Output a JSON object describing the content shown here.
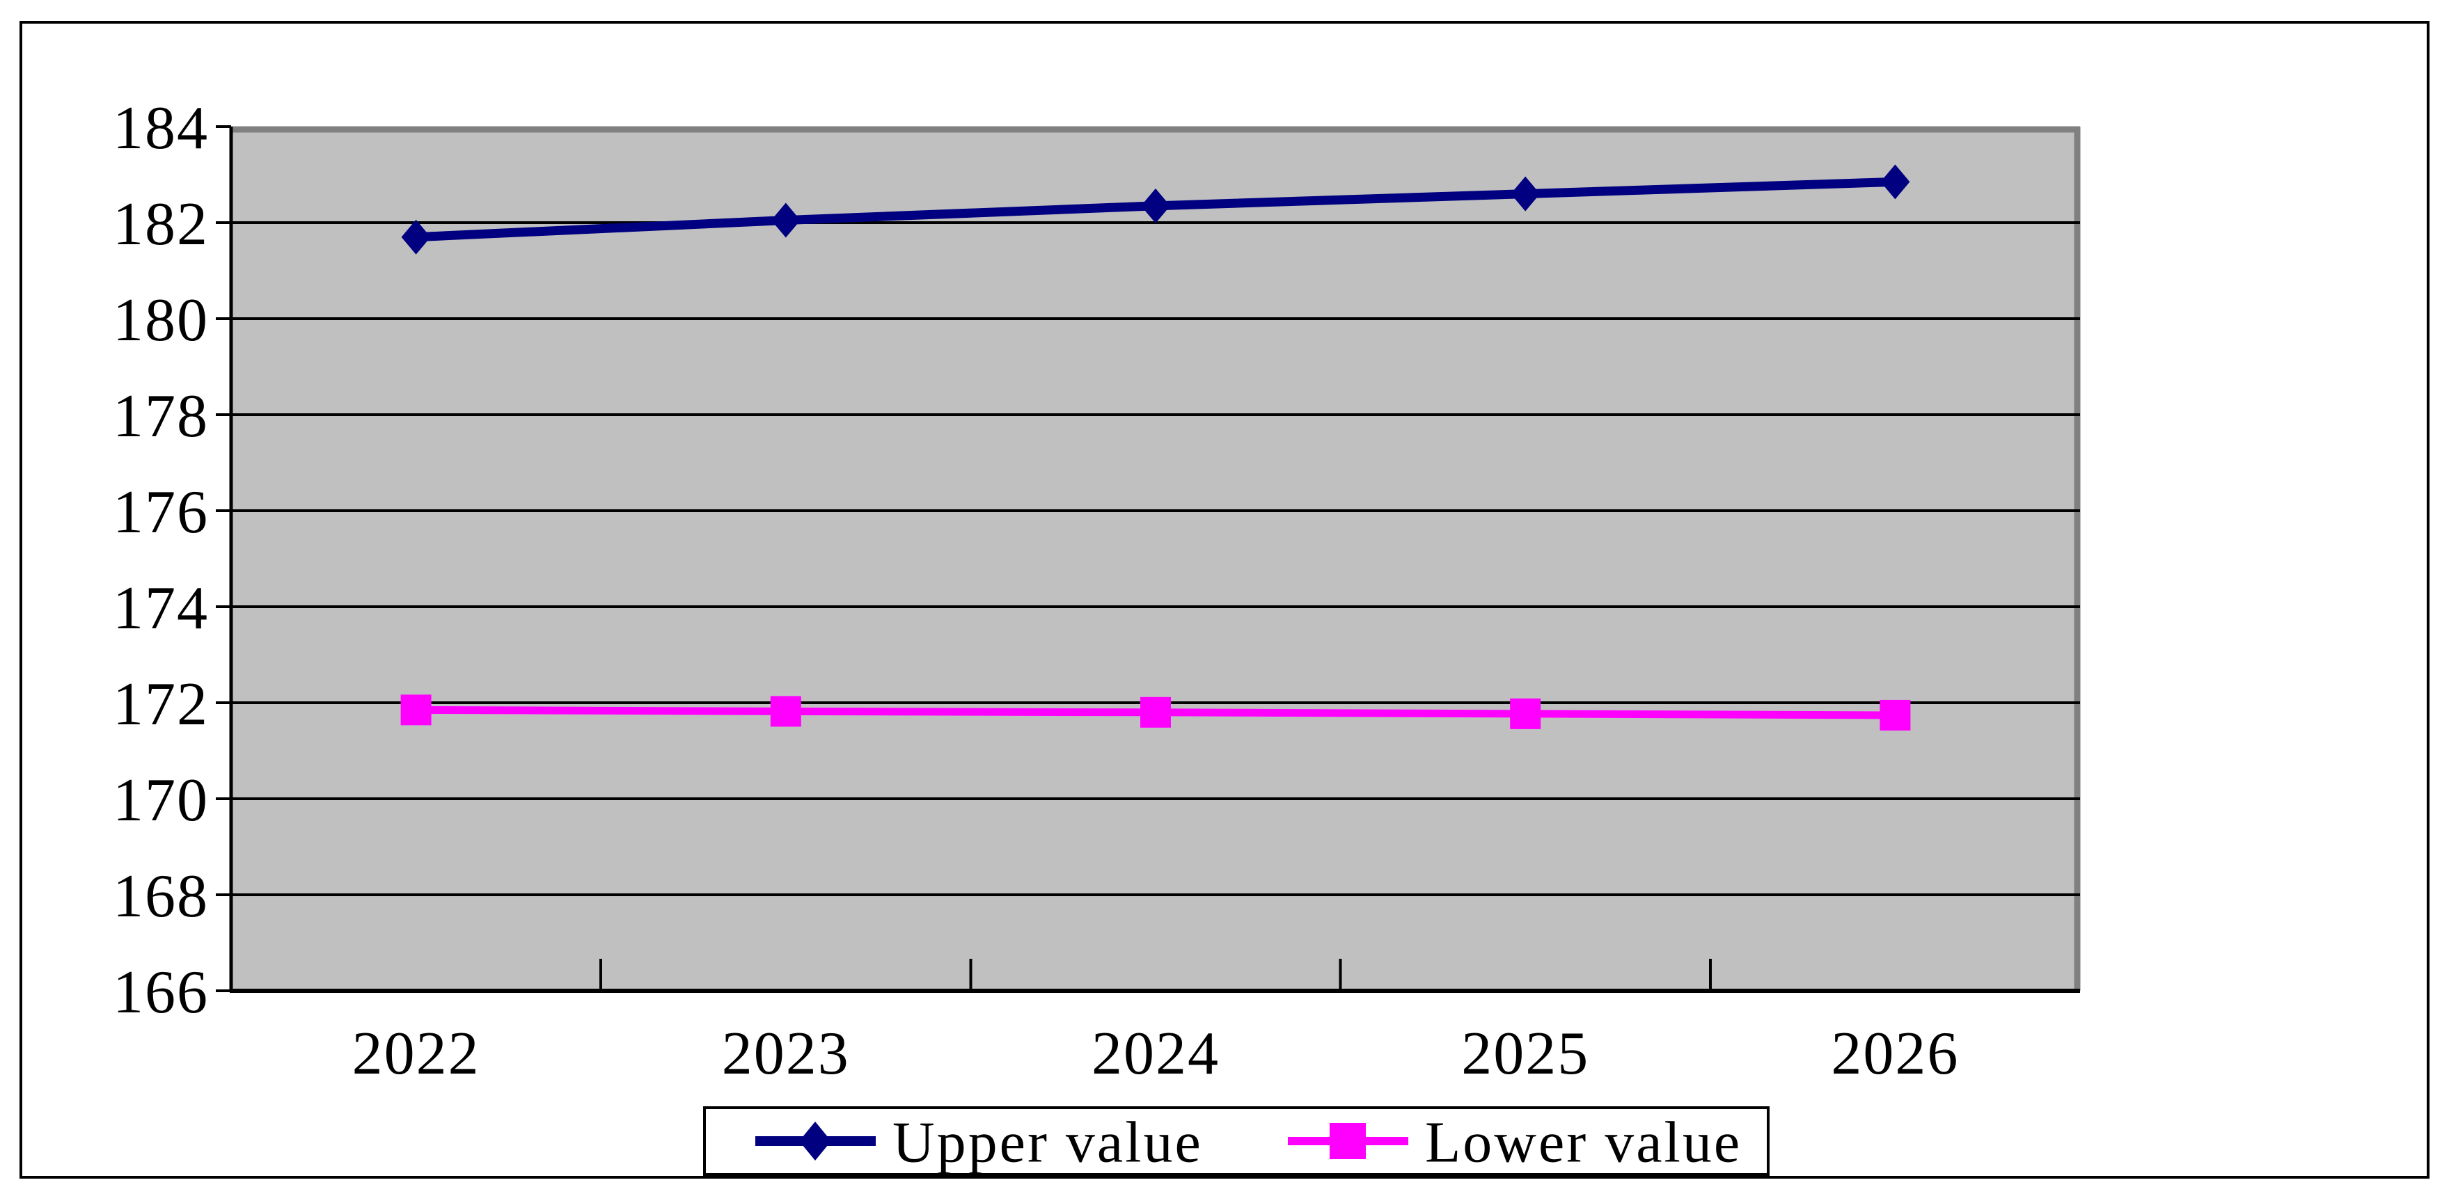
{
  "page": {
    "background": "#FFFFFF",
    "frame_border_color": "#000000"
  },
  "chart_data": {
    "type": "line",
    "title": "",
    "xlabel": "",
    "ylabel": "",
    "categories": [
      "2022",
      "2023",
      "2024",
      "2025",
      "2026"
    ],
    "series": [
      {
        "name": "Upper value",
        "color": "#000080",
        "marker": "diamond",
        "values": [
          181.7,
          182.05,
          182.35,
          182.6,
          182.85
        ]
      },
      {
        "name": "Lower value",
        "color": "#FF00FF",
        "marker": "square",
        "values": [
          171.85,
          171.82,
          171.8,
          171.77,
          171.74
        ]
      }
    ],
    "ylim": [
      166,
      184
    ],
    "ytick_step": 2,
    "yticks": [
      "184",
      "182",
      "180",
      "178",
      "176",
      "174",
      "172",
      "170",
      "168",
      "166"
    ],
    "grid": true,
    "gridline_color": "#000000",
    "axis_color": "#000000",
    "plot_background": "#C0C0C0",
    "plot_border_color": "#808080",
    "legend_position": "bottom-center",
    "legend_border_color": "#000000",
    "legend_background": "#FFFFFF"
  }
}
